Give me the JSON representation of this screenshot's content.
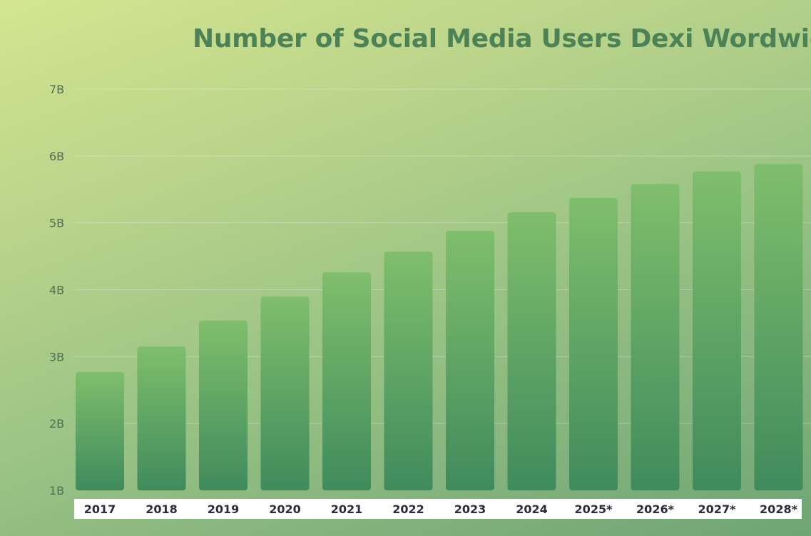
{
  "title": "Number of Social Media Users Dexi Wordwide",
  "chart_data": {
    "type": "bar",
    "title": "Number of Social Media Users Dexi Wordwide",
    "xlabel": "",
    "ylabel": "",
    "categories": [
      "2017",
      "2018",
      "2019",
      "2020",
      "2021",
      "2022",
      "2023",
      "2024",
      "2025*",
      "2026*",
      "2027*",
      "2028*"
    ],
    "values": [
      2.77,
      3.15,
      3.54,
      3.9,
      4.26,
      4.57,
      4.88,
      5.16,
      5.37,
      5.58,
      5.77,
      5.88
    ],
    "value_unit": "B",
    "ylim": [
      1,
      7
    ],
    "yticks": [
      1,
      2,
      3,
      4,
      5,
      6,
      7
    ],
    "ytick_labels": [
      "1B",
      "2B",
      "3B",
      "4B",
      "5B",
      "6B",
      "7B"
    ],
    "grid": true,
    "legend": "none",
    "colors": {
      "bar_top": "#7fbe6c",
      "bar_bottom": "#3f8b5c",
      "title": "#4c8256",
      "axis_text": "#4f6e54",
      "category_text": "#2c2c3c",
      "category_band": "#ffffff"
    }
  }
}
